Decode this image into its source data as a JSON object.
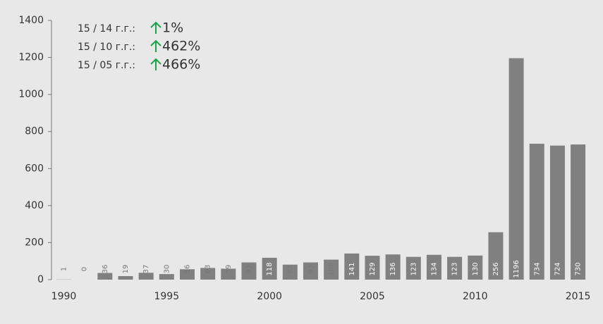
{
  "chart_data": {
    "type": "bar",
    "annotations": [
      {
        "label": "15 / 14 г.г.:",
        "change": "1%"
      },
      {
        "label": "15 / 10 г.г.:",
        "change": "462%"
      },
      {
        "label": "15 / 05 г.г.:",
        "change": "466%"
      }
    ],
    "x": [
      1990,
      1991,
      1992,
      1993,
      1994,
      1995,
      1996,
      1997,
      1998,
      1999,
      2000,
      2001,
      2002,
      2003,
      2004,
      2005,
      2006,
      2007,
      2008,
      2009,
      2010,
      2011,
      2012,
      2013,
      2014,
      2015
    ],
    "values": [
      1,
      0,
      36,
      19,
      37,
      30,
      56,
      63,
      59,
      93,
      118,
      81,
      93,
      108,
      141,
      129,
      136,
      123,
      134,
      123,
      130,
      256,
      1196,
      734,
      724,
      730
    ],
    "color": "#808080",
    "xlim": [
      1989.4,
      2015.7
    ],
    "xticks": [
      1990,
      1995,
      2000,
      2005,
      2010,
      2015
    ],
    "ylim": [
      0,
      1400
    ],
    "yticks": [
      0,
      200,
      400,
      600,
      800,
      1000,
      1200,
      1400
    ]
  }
}
